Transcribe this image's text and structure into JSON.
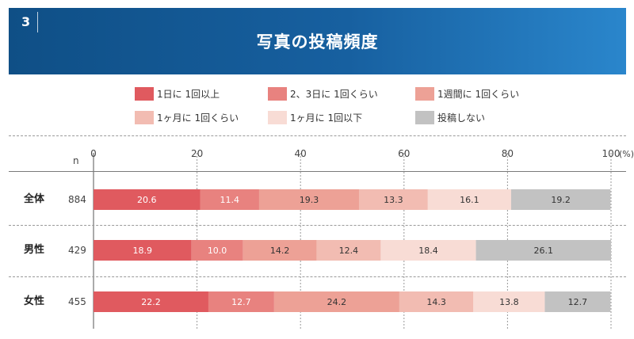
{
  "header": {
    "slide_number": "3",
    "title": "写真の投稿頻度"
  },
  "chart_data": {
    "type": "bar",
    "orientation": "horizontal",
    "stacked": true,
    "title": "写真の投稿頻度",
    "n_label": "n",
    "unit_label": "(%)",
    "xlim": [
      0,
      100
    ],
    "x_ticks": [
      0,
      20,
      40,
      60,
      80,
      100
    ],
    "grid": true,
    "legend_position": "top",
    "categories": [
      "全体",
      "男性",
      "女性"
    ],
    "n_values": [
      884,
      429,
      455
    ],
    "series": [
      {
        "name": "1日に 1回以上",
        "color": "#e05a5f",
        "label_color": "#ffffff",
        "values": [
          20.6,
          18.9,
          22.2
        ]
      },
      {
        "name": "2、3日に 1回くらい",
        "color": "#e8827f",
        "label_color": "#ffffff",
        "values": [
          11.4,
          10.0,
          12.7
        ]
      },
      {
        "name": "1週間に 1回くらい",
        "color": "#eda196",
        "label_color": "#333333",
        "values": [
          19.3,
          14.2,
          24.2
        ]
      },
      {
        "name": "1ヶ月に 1回くらい",
        "color": "#f2bcb2",
        "label_color": "#333333",
        "values": [
          13.3,
          12.4,
          14.3
        ]
      },
      {
        "name": "1ヶ月に 1回以下",
        "color": "#f8dcd5",
        "label_color": "#333333",
        "values": [
          16.1,
          18.4,
          13.8
        ]
      },
      {
        "name": "投稿しない",
        "color": "#c2c2c2",
        "label_color": "#333333",
        "values": [
          19.2,
          26.1,
          12.7
        ]
      }
    ]
  }
}
